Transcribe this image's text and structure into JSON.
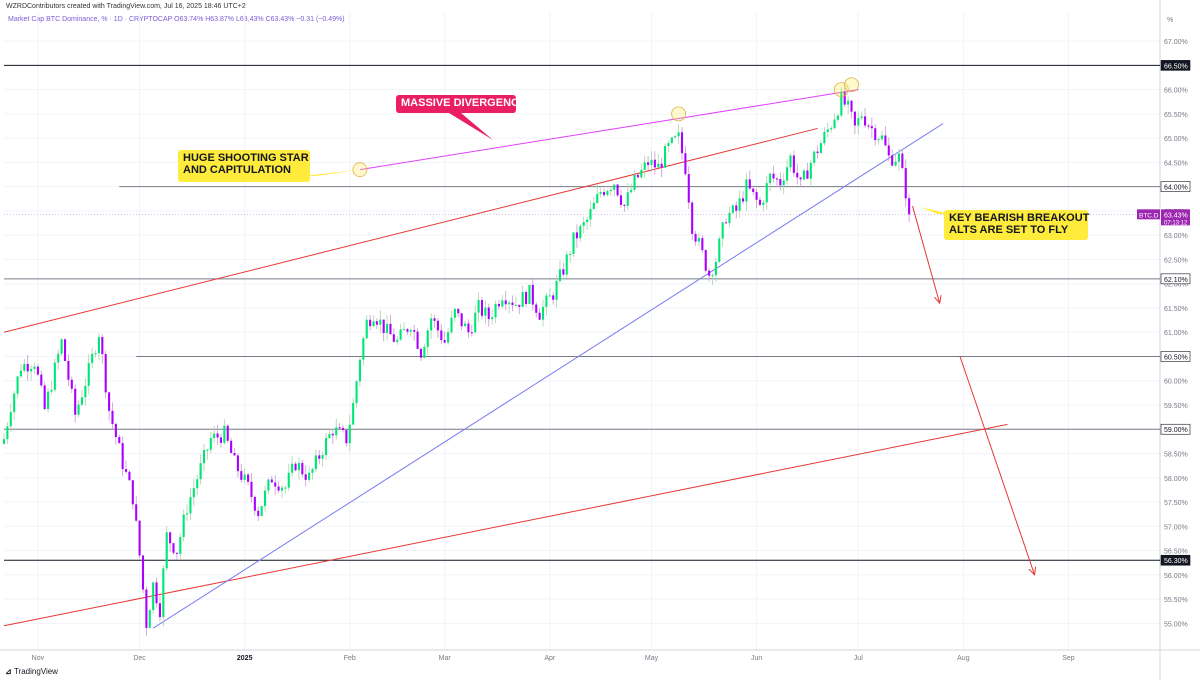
{
  "header": {
    "credit": "WZRDContributors created with TradingView.com, Jul 16, 2025 18:46 UTC+2",
    "legend": "Market Cap BTC Dominance, % · 1D · CRYPTOCAP  O63.74%  H63.87%  L63.43%  C63.43%  −0.31 (−0.49%)"
  },
  "footer": {
    "brand": "TradingView"
  },
  "chart_data": {
    "type": "candlestick",
    "ylim": [
      54.6,
      67.5
    ],
    "axis_unit": "%",
    "y_ticks": [
      "55.00%",
      "55.50%",
      "56.00%",
      "56.50%",
      "57.00%",
      "57.50%",
      "58.00%",
      "58.50%",
      "59.00%",
      "59.50%",
      "60.00%",
      "60.50%",
      "61.00%",
      "61.50%",
      "62.00%",
      "62.50%",
      "63.00%",
      "63.50%",
      "64.00%",
      "64.50%",
      "65.00%",
      "65.50%",
      "66.00%",
      "66.50%",
      "67.00%"
    ],
    "x_ticks": [
      {
        "label": "Nov",
        "t": "2024-11-01"
      },
      {
        "label": "Dec",
        "t": "2024-12-01"
      },
      {
        "label": "2025",
        "t": "2025-01-01"
      },
      {
        "label": "Feb",
        "t": "2025-02-01"
      },
      {
        "label": "Mar",
        "t": "2025-03-01"
      },
      {
        "label": "Apr",
        "t": "2025-04-01"
      },
      {
        "label": "May",
        "t": "2025-05-01"
      },
      {
        "label": "Jun",
        "t": "2025-06-01"
      },
      {
        "label": "Jul",
        "t": "2025-07-01"
      },
      {
        "label": "Aug",
        "t": "2025-08-01"
      },
      {
        "label": "Sep",
        "t": "2025-09-01"
      }
    ],
    "x_range": [
      "2024-10-22",
      "2025-09-28"
    ],
    "close_path": [
      [
        "2024-10-22",
        58.8
      ],
      [
        "2024-10-24",
        59.5
      ],
      [
        "2024-10-27",
        60.3
      ],
      [
        "2024-10-31",
        60.4
      ],
      [
        "2024-11-03",
        59.4
      ],
      [
        "2024-11-08",
        60.8
      ],
      [
        "2024-11-12",
        59.3
      ],
      [
        "2024-11-16",
        60.2
      ],
      [
        "2024-11-19",
        61.0
      ],
      [
        "2024-11-22",
        59.4
      ],
      [
        "2024-11-26",
        58.3
      ],
      [
        "2024-11-29",
        57.6
      ],
      [
        "2024-12-01",
        56.4
      ],
      [
        "2024-12-03",
        55.0
      ],
      [
        "2024-12-05",
        55.8
      ],
      [
        "2024-12-07",
        55.3
      ],
      [
        "2024-12-09",
        56.8
      ],
      [
        "2024-12-12",
        56.5
      ],
      [
        "2024-12-15",
        57.4
      ],
      [
        "2024-12-18",
        58.0
      ],
      [
        "2024-12-22",
        58.8
      ],
      [
        "2024-12-26",
        58.9
      ],
      [
        "2024-12-29",
        58.3
      ],
      [
        "2025-01-02",
        57.8
      ],
      [
        "2025-01-05",
        57.3
      ],
      [
        "2025-01-09",
        58.0
      ],
      [
        "2025-01-13",
        57.8
      ],
      [
        "2025-01-16",
        58.3
      ],
      [
        "2025-01-20",
        58.0
      ],
      [
        "2025-01-24",
        58.6
      ],
      [
        "2025-01-27",
        59.0
      ],
      [
        "2025-01-31",
        58.8
      ],
      [
        "2025-02-02",
        59.5
      ],
      [
        "2025-02-04",
        60.5
      ],
      [
        "2025-02-06",
        61.2
      ],
      [
        "2025-02-08",
        61.4
      ],
      [
        "2025-02-12",
        61.0
      ],
      [
        "2025-02-15",
        60.8
      ],
      [
        "2025-02-19",
        61.2
      ],
      [
        "2025-02-22",
        60.6
      ],
      [
        "2025-02-25",
        61.3
      ],
      [
        "2025-03-01",
        60.8
      ],
      [
        "2025-03-04",
        61.4
      ],
      [
        "2025-03-08",
        61.0
      ],
      [
        "2025-03-11",
        61.5
      ],
      [
        "2025-03-14",
        61.3
      ],
      [
        "2025-03-18",
        61.8
      ],
      [
        "2025-03-22",
        61.6
      ],
      [
        "2025-03-26",
        61.8
      ],
      [
        "2025-03-29",
        61.4
      ],
      [
        "2025-04-02",
        61.8
      ],
      [
        "2025-04-05",
        62.3
      ],
      [
        "2025-04-08",
        62.9
      ],
      [
        "2025-04-12",
        63.3
      ],
      [
        "2025-04-16",
        63.9
      ],
      [
        "2025-04-20",
        64.1
      ],
      [
        "2025-04-23",
        63.6
      ],
      [
        "2025-04-26",
        64.1
      ],
      [
        "2025-04-30",
        64.5
      ],
      [
        "2025-05-03",
        64.4
      ],
      [
        "2025-05-06",
        64.8
      ],
      [
        "2025-05-09",
        65.0
      ],
      [
        "2025-05-11",
        64.4
      ],
      [
        "2025-05-13",
        63.2
      ],
      [
        "2025-05-16",
        62.6
      ],
      [
        "2025-05-18",
        62.2
      ],
      [
        "2025-05-20",
        62.5
      ],
      [
        "2025-05-23",
        63.4
      ],
      [
        "2025-05-26",
        63.5
      ],
      [
        "2025-05-29",
        64.0
      ],
      [
        "2025-06-02",
        63.6
      ],
      [
        "2025-06-05",
        64.2
      ],
      [
        "2025-06-08",
        64.1
      ],
      [
        "2025-06-11",
        64.6
      ],
      [
        "2025-06-14",
        64.0
      ],
      [
        "2025-06-17",
        64.5
      ],
      [
        "2025-06-20",
        64.9
      ],
      [
        "2025-06-23",
        65.3
      ],
      [
        "2025-06-26",
        65.8
      ],
      [
        "2025-06-28",
        65.6
      ],
      [
        "2025-06-30",
        65.2
      ],
      [
        "2025-07-02",
        65.5
      ],
      [
        "2025-07-05",
        65.2
      ],
      [
        "2025-07-08",
        65.0
      ],
      [
        "2025-07-10",
        64.6
      ],
      [
        "2025-07-13",
        64.6
      ],
      [
        "2025-07-15",
        63.9
      ],
      [
        "2025-07-16",
        63.43
      ]
    ],
    "horizontal_levels": [
      {
        "value": 66.5,
        "label": "66.50%",
        "color": "#131722",
        "from": "2024-10-22"
      },
      {
        "value": 64.0,
        "label": "64.00%",
        "color": "#787b86",
        "from": "2024-11-25"
      },
      {
        "value": 62.1,
        "label": "62.10%",
        "color": "#787b86",
        "from": "2024-10-22"
      },
      {
        "value": 60.5,
        "label": "60.50%",
        "color": "#787b86",
        "from": "2024-11-30"
      },
      {
        "value": 59.0,
        "label": "59.00%",
        "color": "#787b86",
        "from": "2024-10-22"
      },
      {
        "value": 56.3,
        "label": "56.30%",
        "color": "#131722",
        "from": "2024-10-22"
      }
    ],
    "current_price": {
      "symbol": "BTC.D",
      "value": 63.43,
      "label": "63.43%",
      "countdown": "07:13:12",
      "color": "#9c27b0"
    },
    "trend_lines": [
      {
        "name": "upper-channel",
        "color": "#e53935",
        "from": [
          "2024-10-22",
          61.0
        ],
        "to": [
          "2025-06-19",
          65.2
        ]
      },
      {
        "name": "lower-channel",
        "color": "#e53935",
        "from": [
          "2024-10-22",
          54.95
        ],
        "to": [
          "2025-08-14",
          59.1
        ]
      },
      {
        "name": "support-trendline",
        "color": "#7b7ff0",
        "from": [
          "2024-12-05",
          54.9
        ],
        "to": [
          "2025-07-26",
          65.3
        ]
      },
      {
        "name": "divergence-line",
        "color": "#e040fb",
        "from": [
          "2025-02-04",
          64.35
        ],
        "to": [
          "2025-07-01",
          66.0
        ]
      }
    ],
    "projection_arrows": [
      {
        "color": "#e53935",
        "from": [
          "2025-07-17",
          63.6
        ],
        "to": [
          "2025-07-25",
          61.6
        ]
      },
      {
        "color": "#e53935",
        "from": [
          "2025-07-31",
          60.5
        ],
        "to": [
          "2025-08-22",
          56.0
        ]
      }
    ],
    "circles": [
      {
        "t": "2025-02-04",
        "v": 64.35
      },
      {
        "t": "2025-05-09",
        "v": 65.5
      },
      {
        "t": "2025-06-26",
        "v": 66.0
      },
      {
        "t": "2025-06-29",
        "v": 66.1
      }
    ],
    "annotations": [
      {
        "text": [
          "HUGE SHOOTING STAR",
          "AND CAPITULATION"
        ],
        "bg": "#ffeb3b",
        "fg": "#131722"
      },
      {
        "text": [
          "MASSIVE DIVERGENCE"
        ],
        "bg": "#e91e63",
        "fg": "#ffffff"
      },
      {
        "text": [
          "KEY BEARISH BREAKOUT",
          "ALTS ARE SET TO FLY"
        ],
        "bg": "#ffeb3b",
        "fg": "#131722"
      }
    ],
    "colors": {
      "up": "#26a69a",
      "up_bright": "#00e676",
      "down": "#9c27b0",
      "down_bright": "#aa00ff"
    }
  }
}
